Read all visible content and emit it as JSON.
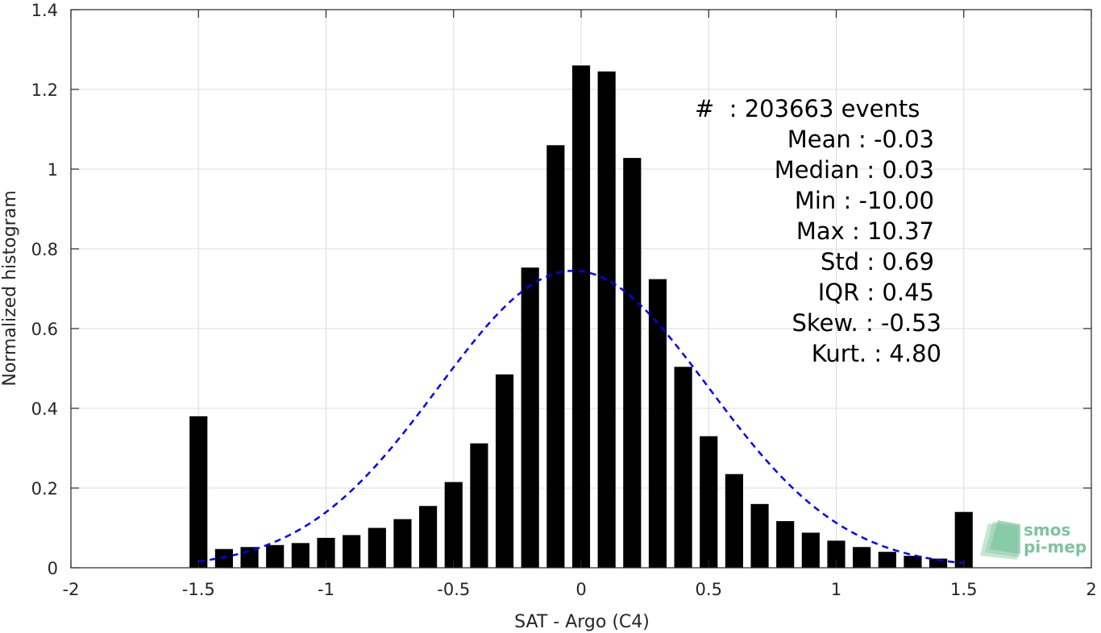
{
  "chart_data": {
    "type": "bar",
    "title": "",
    "xlabel": "SAT - Argo (C4)",
    "ylabel": "Normalized histogram",
    "xlim": [
      -2,
      2
    ],
    "ylim": [
      0,
      1.4
    ],
    "xticks": [
      -2,
      -1.5,
      -1,
      -0.5,
      0,
      0.5,
      1,
      1.5,
      2
    ],
    "xtick_labels": [
      "-2",
      "-1.5",
      "-1",
      "-0.5",
      "0",
      "0.5",
      "1",
      "1.5",
      "2"
    ],
    "yticks": [
      0,
      0.2,
      0.4,
      0.6,
      0.8,
      1,
      1.2,
      1.4
    ],
    "ytick_labels": [
      "0",
      "0.2",
      "0.4",
      "0.6",
      "0.8",
      "1",
      "1.2",
      "1.4"
    ],
    "grid": true,
    "bar_width": 0.07,
    "bars": {
      "x": [
        -1.5,
        -1.4,
        -1.3,
        -1.2,
        -1.1,
        -1.0,
        -0.9,
        -0.8,
        -0.7,
        -0.6,
        -0.5,
        -0.4,
        -0.3,
        -0.2,
        -0.1,
        0.0,
        0.1,
        0.2,
        0.3,
        0.4,
        0.5,
        0.6,
        0.7,
        0.8,
        0.9,
        1.0,
        1.1,
        1.2,
        1.3,
        1.4,
        1.5
      ],
      "values": [
        0.38,
        0.047,
        0.052,
        0.057,
        0.062,
        0.075,
        0.082,
        0.1,
        0.122,
        0.155,
        0.215,
        0.312,
        0.485,
        0.753,
        1.06,
        1.26,
        1.245,
        1.028,
        0.724,
        0.504,
        0.33,
        0.235,
        0.16,
        0.117,
        0.088,
        0.068,
        0.052,
        0.04,
        0.03,
        0.023,
        0.14
      ],
      "color": "#000000"
    },
    "fit_curve": {
      "type": "gaussian",
      "mean": -0.03,
      "std": 0.53,
      "peak": 0.745,
      "x_range": [
        -1.5,
        1.5
      ],
      "color": "#0000ff",
      "style": "dashed"
    },
    "stats": [
      {
        "label": "#  : 203663 events",
        "anchor": "start"
      },
      {
        "label": "Mean : -0.03",
        "anchor": "end"
      },
      {
        "label": "Median : 0.03",
        "anchor": "end"
      },
      {
        "label": "Min : -10.00",
        "anchor": "end"
      },
      {
        "label": "Max : 10.37",
        "anchor": "end"
      },
      {
        "label": "Std : 0.69",
        "anchor": "end"
      },
      {
        "label": "IQR : 0.45",
        "anchor": "end"
      },
      {
        "label": "Skew. : -0.53",
        "anchor": "end"
      },
      {
        "label": "Kurt. : 4.80",
        "anchor": "end"
      }
    ]
  },
  "logo": {
    "line1": "smos",
    "line2": "pi-mep",
    "color": "#7cc4a0"
  }
}
